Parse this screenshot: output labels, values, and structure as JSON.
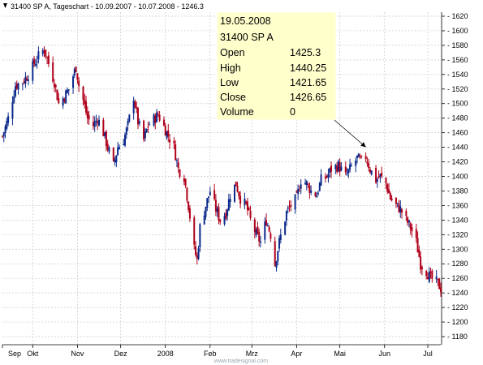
{
  "header": {
    "title": "31400  SP A, Tageschart - 10.09.2007 - 10.07.2008 - 1246.3"
  },
  "tooltip": {
    "date": "19.05.2008",
    "symbol": "31400  SP A",
    "rows": [
      {
        "label": "Open",
        "value": "1425.3"
      },
      {
        "label": "High",
        "value": "1440.25"
      },
      {
        "label": "Low",
        "value": "1421.65"
      },
      {
        "label": "Close",
        "value": "1426.65"
      },
      {
        "label": "Volume",
        "value": "0"
      }
    ],
    "bg_color": "#ffffcc"
  },
  "watermark": "www.tradesignal.com",
  "colors": {
    "up": "#0b2a8c",
    "down": "#b0001a",
    "grid": "#c8c8c8"
  },
  "chart_data": {
    "type": "candlestick",
    "title": "31400  SP A, Tageschart - 10.09.2007 - 10.07.2008 - 1246.3",
    "y_axis_position": "right",
    "ylim": [
      1180,
      1620
    ],
    "yticks": [
      1180,
      1200,
      1220,
      1240,
      1260,
      1280,
      1300,
      1320,
      1340,
      1360,
      1380,
      1400,
      1420,
      1440,
      1460,
      1480,
      1500,
      1520,
      1540,
      1560,
      1580,
      1600,
      1620
    ],
    "grid": true,
    "xlim": [
      "2007-09-10",
      "2008-07-10"
    ],
    "x_tick_labels": [
      {
        "label": "Sep",
        "date": "2007-09-10"
      },
      {
        "label": "Okt",
        "date": "2007-10-01"
      },
      {
        "label": "Nov",
        "date": "2007-11-01"
      },
      {
        "label": "Dez",
        "date": "2007-12-01"
      },
      {
        "label": "2008",
        "date": "2008-01-01"
      },
      {
        "label": "Feb",
        "date": "2008-02-01"
      },
      {
        "label": "Mrz",
        "date": "2008-03-01"
      },
      {
        "label": "Apr",
        "date": "2008-04-01"
      },
      {
        "label": "Mai",
        "date": "2008-05-01"
      },
      {
        "label": "Jun",
        "date": "2008-06-01"
      },
      {
        "label": "Jul",
        "date": "2008-07-01"
      }
    ],
    "close_path": [
      [
        "2007-09-10",
        1455
      ],
      [
        "2007-09-14",
        1480
      ],
      [
        "2007-09-19",
        1525
      ],
      [
        "2007-09-24",
        1530
      ],
      [
        "2007-09-28",
        1540
      ],
      [
        "2007-10-02",
        1555
      ],
      [
        "2007-10-05",
        1565
      ],
      [
        "2007-10-09",
        1575
      ],
      [
        "2007-10-12",
        1555
      ],
      [
        "2007-10-16",
        1530
      ],
      [
        "2007-10-19",
        1500
      ],
      [
        "2007-10-23",
        1510
      ],
      [
        "2007-10-26",
        1520
      ],
      [
        "2007-10-31",
        1550
      ],
      [
        "2007-11-02",
        1525
      ],
      [
        "2007-11-05",
        1505
      ],
      [
        "2007-11-08",
        1480
      ],
      [
        "2007-11-12",
        1470
      ],
      [
        "2007-11-15",
        1480
      ],
      [
        "2007-11-19",
        1460
      ],
      [
        "2007-11-22",
        1440
      ],
      [
        "2007-11-26",
        1415
      ],
      [
        "2007-11-29",
        1440
      ],
      [
        "2007-12-03",
        1450
      ],
      [
        "2007-12-06",
        1470
      ],
      [
        "2007-12-10",
        1510
      ],
      [
        "2007-12-13",
        1475
      ],
      [
        "2007-12-17",
        1450
      ],
      [
        "2007-12-20",
        1470
      ],
      [
        "2007-12-27",
        1485
      ],
      [
        "2008-01-02",
        1460
      ],
      [
        "2008-01-07",
        1440
      ],
      [
        "2008-01-10",
        1410
      ],
      [
        "2008-01-14",
        1400
      ],
      [
        "2008-01-17",
        1360
      ],
      [
        "2008-01-21",
        1300
      ],
      [
        "2008-01-23",
        1285
      ],
      [
        "2008-01-25",
        1330
      ],
      [
        "2008-01-29",
        1360
      ],
      [
        "2008-02-01",
        1380
      ],
      [
        "2008-02-05",
        1355
      ],
      [
        "2008-02-08",
        1340
      ],
      [
        "2008-02-12",
        1350
      ],
      [
        "2008-02-15",
        1375
      ],
      [
        "2008-02-19",
        1390
      ],
      [
        "2008-02-22",
        1370
      ],
      [
        "2008-02-26",
        1360
      ],
      [
        "2008-02-29",
        1340
      ],
      [
        "2008-03-04",
        1320
      ],
      [
        "2008-03-07",
        1310
      ],
      [
        "2008-03-11",
        1340
      ],
      [
        "2008-03-14",
        1320
      ],
      [
        "2008-03-17",
        1280
      ],
      [
        "2008-03-20",
        1310
      ],
      [
        "2008-03-25",
        1350
      ],
      [
        "2008-03-28",
        1360
      ],
      [
        "2008-04-01",
        1370
      ],
      [
        "2008-04-04",
        1395
      ],
      [
        "2008-04-08",
        1390
      ],
      [
        "2008-04-11",
        1380
      ],
      [
        "2008-04-15",
        1375
      ],
      [
        "2008-04-18",
        1395
      ],
      [
        "2008-04-22",
        1400
      ],
      [
        "2008-04-25",
        1410
      ],
      [
        "2008-04-30",
        1415
      ],
      [
        "2008-05-05",
        1400
      ],
      [
        "2008-05-08",
        1410
      ],
      [
        "2008-05-13",
        1425
      ],
      [
        "2008-05-16",
        1420
      ],
      [
        "2008-05-19",
        1427
      ],
      [
        "2008-05-22",
        1410
      ],
      [
        "2008-05-26",
        1395
      ],
      [
        "2008-05-29",
        1400
      ],
      [
        "2008-06-02",
        1390
      ],
      [
        "2008-06-05",
        1370
      ],
      [
        "2008-06-09",
        1360
      ],
      [
        "2008-06-12",
        1355
      ],
      [
        "2008-06-16",
        1340
      ],
      [
        "2008-06-19",
        1330
      ],
      [
        "2008-06-23",
        1310
      ],
      [
        "2008-06-26",
        1280
      ],
      [
        "2008-06-30",
        1270
      ],
      [
        "2008-07-03",
        1260
      ],
      [
        "2008-07-07",
        1255
      ],
      [
        "2008-07-10",
        1246.3
      ]
    ],
    "annotation": {
      "date": "2008-05-19",
      "value": 1440.25,
      "text": "19.05.2008"
    }
  }
}
